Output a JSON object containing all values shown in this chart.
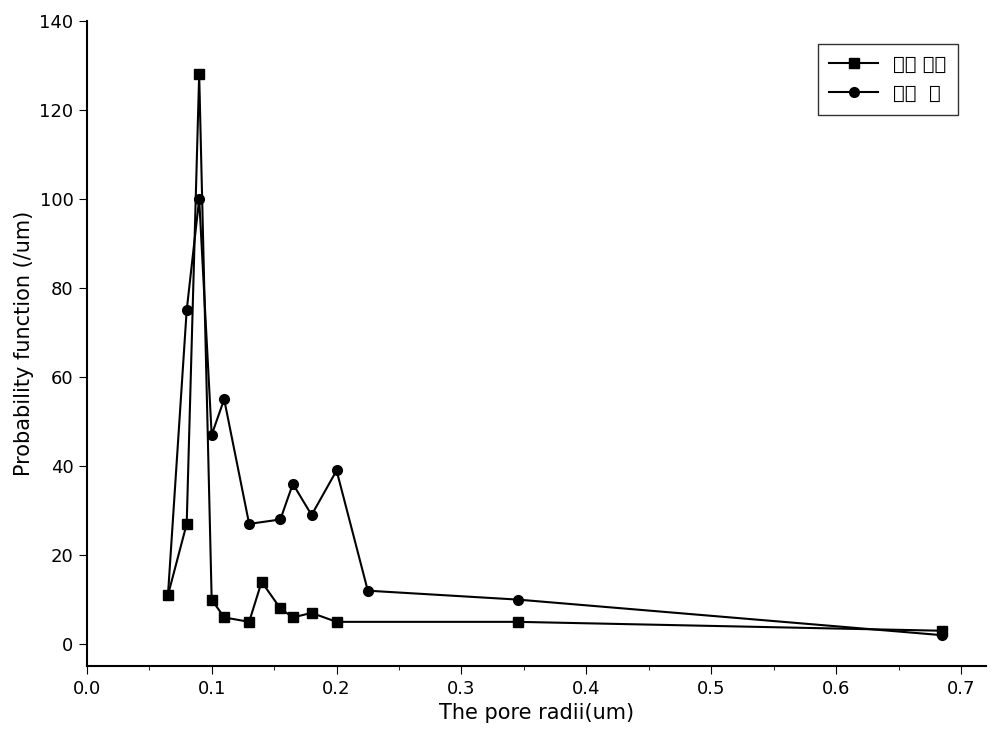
{
  "series1_label": "实施 例二",
  "series2_label": "对比  例",
  "series1_x": [
    0.065,
    0.08,
    0.09,
    0.1,
    0.11,
    0.13,
    0.14,
    0.155,
    0.165,
    0.18,
    0.2,
    0.345,
    0.685
  ],
  "series1_y": [
    11,
    27,
    128,
    10,
    6,
    5,
    14,
    8,
    6,
    7,
    5,
    5,
    3
  ],
  "series2_x": [
    0.065,
    0.08,
    0.09,
    0.1,
    0.11,
    0.13,
    0.155,
    0.165,
    0.18,
    0.2,
    0.225,
    0.345,
    0.685
  ],
  "series2_y": [
    11,
    75,
    100,
    47,
    55,
    27,
    28,
    36,
    29,
    39,
    12,
    10,
    2
  ],
  "xlabel": "The pore radii(um)",
  "ylabel": "Probability function (/um)",
  "xlim": [
    0.0,
    0.72
  ],
  "ylim": [
    -5,
    140
  ],
  "yticks": [
    0,
    20,
    40,
    60,
    80,
    100,
    120,
    140
  ],
  "xticks": [
    0.0,
    0.1,
    0.2,
    0.3,
    0.4,
    0.5,
    0.6,
    0.7
  ],
  "line_color": "#000000",
  "marker1": "s",
  "marker2": "o",
  "markersize": 7,
  "linewidth": 1.5,
  "font_size_label": 15,
  "font_size_tick": 13,
  "font_size_legend": 14
}
